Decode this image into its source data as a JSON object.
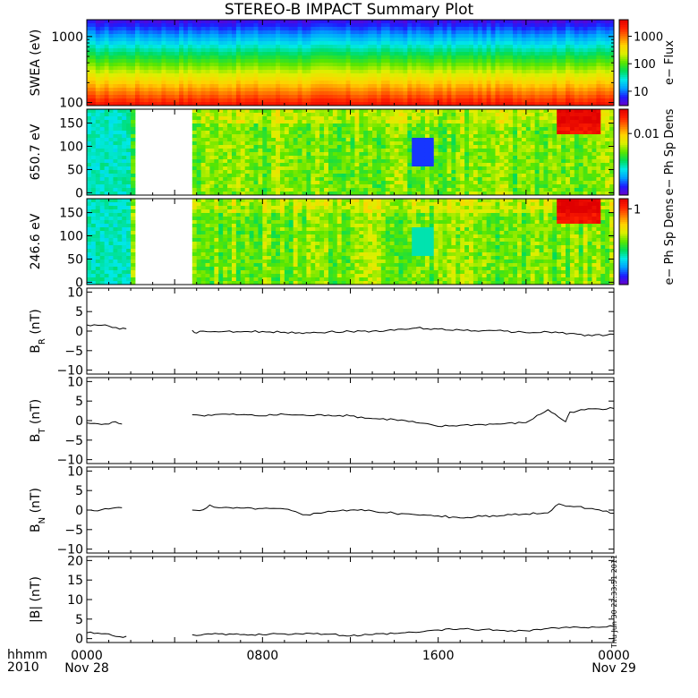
{
  "page": {
    "title": "STEREO-B IMPACT Summary Plot",
    "x_axis": {
      "row1_label": "hhmm",
      "row2_label": "2010",
      "ticks": [
        {
          "hours": 0,
          "line1": "0000",
          "line2": "Nov 28"
        },
        {
          "hours": 8,
          "line1": "0800",
          "line2": ""
        },
        {
          "hours": 16,
          "line1": "1600",
          "line2": ""
        },
        {
          "hours": 24,
          "line1": "0000",
          "line2": "Nov 29"
        }
      ]
    },
    "timestamp": "Thu Jun 30 22:33:51 2011"
  },
  "colors": {
    "colormap": [
      "#6a00c8",
      "#1c1cff",
      "#00a0ff",
      "#00e8e8",
      "#00dc5a",
      "#5ae600",
      "#dcf000",
      "#ffd200",
      "#ff7800",
      "#ff2000",
      "#e00000"
    ],
    "line": "#000000",
    "gap": "#ffffff"
  },
  "chart_data": [
    {
      "type": "heatmap",
      "ylabel": "SWEA (eV)",
      "yscale": "log",
      "ylim": [
        90,
        1800
      ],
      "yticks": [
        100,
        1000
      ],
      "ytick_labels": [
        "100",
        "1000"
      ],
      "colorbar": {
        "label": "e− Flux",
        "scale": "log",
        "range": [
          3,
          4000
        ],
        "ticks": [
          10,
          100,
          1000
        ],
        "tick_labels": [
          "10",
          "100",
          "1000"
        ]
      },
      "gaps": []
    },
    {
      "type": "heatmap",
      "ylabel": "650.7 eV",
      "ylim": [
        -5,
        180
      ],
      "yticks": [
        0,
        50,
        100,
        150
      ],
      "ytick_labels": [
        "0",
        "50",
        "100",
        "150"
      ],
      "colorbar": {
        "label": "e− Ph Sp Dens",
        "scale": "log",
        "range": [
          0.0003,
          0.04
        ],
        "ticks": [
          0.01
        ],
        "tick_labels": [
          "0.01"
        ]
      },
      "gaps": [
        [
          2.1,
          4.8
        ]
      ]
    },
    {
      "type": "heatmap",
      "ylabel": "246.6 eV",
      "ylim": [
        -5,
        180
      ],
      "yticks": [
        0,
        50,
        100,
        150
      ],
      "ytick_labels": [
        "0",
        "50",
        "100",
        "150"
      ],
      "colorbar": {
        "label": "e− Ph Sp Dens",
        "scale": "log",
        "range": [
          0.03,
          1.6
        ],
        "ticks": [
          1
        ],
        "tick_labels": [
          "1"
        ]
      },
      "gaps": [
        [
          2.1,
          4.8
        ]
      ]
    },
    {
      "type": "line",
      "ylabel": "B",
      "ylabel_sub": "R",
      "ylabel_unit": "(nT)",
      "ylim": [
        -11,
        11
      ],
      "yticks": [
        -10,
        -5,
        0,
        5,
        10
      ],
      "ytick_labels": [
        "−10",
        "−5",
        "0",
        "5",
        "10"
      ],
      "x": [
        0,
        0.5,
        1,
        1.5,
        1.8,
        2.1,
        4.8,
        5.0,
        5.3,
        6,
        7,
        8,
        9,
        10,
        11,
        12,
        13,
        14,
        15,
        16,
        17,
        18,
        19,
        20,
        21,
        22,
        23,
        24
      ],
      "y": [
        1.6,
        1.5,
        1.3,
        0.5,
        0.6,
        null,
        0.2,
        -0.5,
        0,
        -0.2,
        -0.2,
        -0.1,
        -0.3,
        -0.4,
        -0.2,
        -0.1,
        0,
        0.2,
        0.8,
        0.5,
        0.3,
        0.1,
        0,
        -0.4,
        -0.2,
        -0.6,
        -1.2,
        -0.8
      ],
      "gaps": [
        [
          2.1,
          4.8
        ]
      ]
    },
    {
      "type": "line",
      "ylabel": "B",
      "ylabel_sub": "T",
      "ylabel_unit": "(nT)",
      "ylim": [
        -11,
        11
      ],
      "yticks": [
        -10,
        -5,
        0,
        5,
        10
      ],
      "ytick_labels": [
        "−10",
        "−5",
        "0",
        "5",
        "10"
      ],
      "x": [
        0,
        0.5,
        1,
        1.3,
        1.6,
        2.1,
        4.8,
        5.2,
        6,
        7,
        8,
        9,
        10,
        11,
        12,
        13,
        14,
        15,
        16,
        17,
        18,
        19,
        20,
        21,
        21.8,
        22,
        23,
        24
      ],
      "y": [
        -0.6,
        -0.8,
        -0.9,
        -0.3,
        -0.9,
        null,
        1.5,
        1.3,
        1.6,
        1.5,
        1.2,
        1.6,
        1.3,
        1.4,
        1.2,
        0.5,
        0.3,
        -0.5,
        -1.5,
        -1.2,
        -1,
        -0.8,
        -0.5,
        2.8,
        -0.3,
        2.2,
        3,
        3.1
      ],
      "gaps": [
        [
          2.1,
          4.8
        ]
      ]
    },
    {
      "type": "line",
      "ylabel": "B",
      "ylabel_sub": "N",
      "ylabel_unit": "(nT)",
      "ylim": [
        -11,
        11
      ],
      "yticks": [
        -10,
        -5,
        0,
        5,
        10
      ],
      "ytick_labels": [
        "−10",
        "−5",
        "0",
        "5",
        "10"
      ],
      "x": [
        0,
        0.5,
        1,
        1.3,
        1.6,
        2.1,
        4.8,
        5.3,
        5.6,
        6,
        7,
        8,
        9,
        10,
        11,
        12,
        13,
        14,
        15,
        16,
        17,
        18,
        19,
        20,
        21,
        21.5,
        22,
        23,
        24
      ],
      "y": [
        0,
        -0.2,
        0.3,
        0.6,
        0.6,
        null,
        0,
        0.1,
        1.3,
        0.6,
        0.5,
        0.4,
        0.3,
        -1.2,
        -0.3,
        0,
        -0.2,
        -0.8,
        -1.2,
        -1.5,
        -2,
        -1.6,
        -1.4,
        -1,
        -0.7,
        1.6,
        1,
        0.4,
        -0.8
      ],
      "gaps": [
        [
          2.1,
          4.8
        ]
      ]
    },
    {
      "type": "line",
      "ylabel": "|B|",
      "ylabel_sub": "",
      "ylabel_unit": "(nT)",
      "ylim": [
        -1,
        21
      ],
      "yticks": [
        0,
        5,
        10,
        15,
        20
      ],
      "ytick_labels": [
        "0",
        "5",
        "10",
        "15",
        "20"
      ],
      "x": [
        0,
        0.5,
        1,
        1.5,
        1.8,
        2.1,
        4.8,
        5.2,
        6,
        7,
        8,
        9,
        10,
        11,
        12,
        13,
        14,
        15,
        16,
        17,
        18,
        19,
        20,
        21,
        22,
        23,
        24
      ],
      "y": [
        1.5,
        1.4,
        1.2,
        0.5,
        0.6,
        null,
        1.0,
        0.9,
        1.2,
        1.0,
        1.0,
        1.2,
        1.4,
        1.1,
        0.7,
        1.0,
        1.3,
        1.6,
        2.2,
        2.5,
        2.3,
        2.1,
        2.0,
        2.6,
        2.8,
        3.0,
        3.1
      ],
      "gaps": [
        [
          2.1,
          4.8
        ]
      ]
    }
  ]
}
